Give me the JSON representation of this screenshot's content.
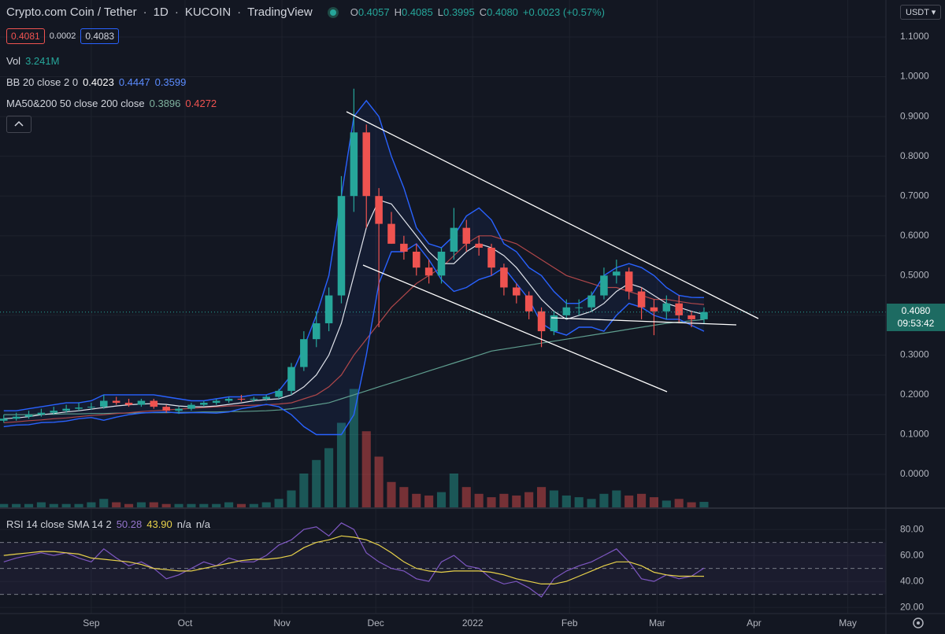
{
  "header": {
    "symbol": "Crypto.com Coin / Tether",
    "interval": "1D",
    "exchange": "KUCOIN",
    "source": "TradingView",
    "ohlc": [
      [
        "O",
        "0.4057"
      ],
      [
        "H",
        "0.4085"
      ],
      [
        "L",
        "0.3995"
      ],
      [
        "C",
        "0.4080"
      ]
    ],
    "change": "+0.0023 (+0.57%)",
    "sell": "0.4081",
    "spread": "0.0002",
    "buy": "0.4083",
    "currency": "USDT"
  },
  "legend": {
    "vol": {
      "name": "Vol",
      "value": "3.241M"
    },
    "bb": {
      "name": "BB 20 close 2 0",
      "values": [
        "0.4023",
        "0.4447",
        "0.3599"
      ]
    },
    "ma": {
      "name": "MA50&200 50 close 200 close",
      "values": [
        "0.3896",
        "0.4272"
      ]
    },
    "rsi": {
      "name": "RSI 14 close SMA 14 2",
      "values": [
        "50.28",
        "43.90",
        "n/a",
        "n/a"
      ]
    }
  },
  "chart_data": {
    "type": "candlestick",
    "x": [
      -28,
      -24,
      -20,
      -16,
      -12,
      -8,
      -4,
      0,
      4,
      8,
      12,
      16,
      20,
      24,
      28,
      32,
      36,
      40,
      44,
      48,
      52,
      56,
      60,
      64,
      68,
      72,
      76,
      80,
      84,
      88,
      92,
      96,
      100,
      104,
      108,
      112,
      116,
      120,
      124,
      128,
      132,
      136,
      140,
      144,
      148,
      152,
      156,
      160,
      164,
      168,
      172,
      176,
      180,
      184,
      188,
      192,
      196
    ],
    "xlim": [
      -29.2,
      254.2
    ],
    "xticks": [
      {
        "value": 0,
        "label": "Sep"
      },
      {
        "value": 30,
        "label": "Oct"
      },
      {
        "value": 61,
        "label": "Nov"
      },
      {
        "value": 91,
        "label": "Dec"
      },
      {
        "value": 122,
        "label": "2022"
      },
      {
        "value": 153,
        "label": "Feb"
      },
      {
        "value": 181,
        "label": "Mar"
      },
      {
        "value": 212,
        "label": "Apr"
      },
      {
        "value": 242,
        "label": "May"
      }
    ],
    "ylim": [
      -0.083,
      1.193
    ],
    "yticks": [
      {
        "value": 0,
        "label": "0.0000"
      },
      {
        "value": 0.1,
        "label": "0.1000"
      },
      {
        "value": 0.2,
        "label": "0.2000"
      },
      {
        "value": 0.3,
        "label": "0.3000"
      },
      {
        "value": 0.4,
        "label": "0.4000"
      },
      {
        "value": 0.5,
        "label": "0.5000"
      },
      {
        "value": 0.6,
        "label": "0.6000"
      },
      {
        "value": 0.7,
        "label": "0.7000"
      },
      {
        "value": 0.8,
        "label": "0.8000"
      },
      {
        "value": 0.9,
        "label": "0.9000"
      },
      {
        "value": 1,
        "label": "1.0000"
      },
      {
        "value": 1.1,
        "label": "1.1000"
      }
    ],
    "grid": true,
    "up_color": "#26a69a",
    "down_color": "#ef5350",
    "open": [
      0.135,
      0.14,
      0.145,
      0.15,
      0.155,
      0.16,
      0.165,
      0.168,
      0.17,
      0.185,
      0.18,
      0.175,
      0.185,
      0.17,
      0.16,
      0.165,
      0.175,
      0.18,
      0.185,
      0.19,
      0.188,
      0.19,
      0.195,
      0.21,
      0.27,
      0.34,
      0.38,
      0.45,
      0.7,
      0.86,
      0.7,
      0.63,
      0.58,
      0.56,
      0.52,
      0.5,
      0.56,
      0.62,
      0.58,
      0.57,
      0.52,
      0.47,
      0.45,
      0.41,
      0.36,
      0.4,
      0.42,
      0.42,
      0.45,
      0.5,
      0.51,
      0.46,
      0.42,
      0.41,
      0.43,
      0.4,
      0.39
    ],
    "high": [
      0.15,
      0.155,
      0.16,
      0.165,
      0.17,
      0.175,
      0.18,
      0.18,
      0.2,
      0.195,
      0.19,
      0.19,
      0.19,
      0.175,
      0.17,
      0.18,
      0.185,
      0.19,
      0.195,
      0.2,
      0.195,
      0.2,
      0.215,
      0.28,
      0.36,
      0.41,
      0.47,
      0.75,
      0.97,
      0.88,
      0.72,
      0.66,
      0.6,
      0.58,
      0.54,
      0.57,
      0.67,
      0.64,
      0.6,
      0.58,
      0.53,
      0.48,
      0.46,
      0.42,
      0.41,
      0.44,
      0.44,
      0.46,
      0.52,
      0.54,
      0.52,
      0.47,
      0.44,
      0.45,
      0.45,
      0.41,
      0.42
    ],
    "low": [
      0.13,
      0.135,
      0.14,
      0.145,
      0.15,
      0.155,
      0.16,
      0.162,
      0.165,
      0.175,
      0.17,
      0.17,
      0.165,
      0.155,
      0.152,
      0.16,
      0.17,
      0.175,
      0.18,
      0.183,
      0.182,
      0.185,
      0.19,
      0.2,
      0.26,
      0.32,
      0.36,
      0.43,
      0.66,
      0.62,
      0.37,
      0.58,
      0.54,
      0.5,
      0.48,
      0.48,
      0.54,
      0.56,
      0.55,
      0.5,
      0.45,
      0.43,
      0.39,
      0.32,
      0.35,
      0.39,
      0.4,
      0.41,
      0.44,
      0.48,
      0.44,
      0.39,
      0.35,
      0.39,
      0.38,
      0.37,
      0.38
    ],
    "close": [
      0.14,
      0.145,
      0.15,
      0.155,
      0.16,
      0.165,
      0.168,
      0.17,
      0.185,
      0.18,
      0.175,
      0.185,
      0.17,
      0.16,
      0.165,
      0.175,
      0.18,
      0.185,
      0.19,
      0.188,
      0.19,
      0.195,
      0.21,
      0.27,
      0.34,
      0.38,
      0.45,
      0.7,
      0.86,
      0.7,
      0.63,
      0.58,
      0.56,
      0.52,
      0.5,
      0.56,
      0.62,
      0.58,
      0.57,
      0.52,
      0.47,
      0.45,
      0.41,
      0.36,
      0.4,
      0.42,
      0.42,
      0.45,
      0.5,
      0.51,
      0.46,
      0.42,
      0.41,
      0.43,
      0.4,
      0.39,
      0.408
    ],
    "volume": {
      "ylim": [
        0,
        300
      ],
      "values": [
        2,
        2,
        2,
        3,
        2,
        2,
        2,
        3,
        5,
        3,
        2,
        3,
        3,
        2,
        2,
        2,
        2,
        2,
        3,
        2,
        2,
        3,
        5,
        10,
        20,
        28,
        35,
        50,
        70,
        45,
        30,
        15,
        12,
        8,
        7,
        9,
        20,
        12,
        8,
        6,
        8,
        7,
        9,
        12,
        10,
        7,
        6,
        5,
        8,
        10,
        7,
        8,
        6,
        4,
        5,
        3,
        3.241
      ]
    },
    "bb": {
      "basis_color": "#e0e3eb",
      "band_color": "#2962ff",
      "basis": [
        0.14,
        0.142,
        0.145,
        0.15,
        0.153,
        0.157,
        0.16,
        0.164,
        0.168,
        0.172,
        0.175,
        0.177,
        0.178,
        0.176,
        0.172,
        0.17,
        0.17,
        0.172,
        0.176,
        0.18,
        0.185,
        0.188,
        0.19,
        0.2,
        0.22,
        0.25,
        0.3,
        0.38,
        0.5,
        0.62,
        0.69,
        0.68,
        0.64,
        0.6,
        0.56,
        0.53,
        0.53,
        0.56,
        0.58,
        0.57,
        0.55,
        0.52,
        0.48,
        0.44,
        0.41,
        0.39,
        0.4,
        0.41,
        0.43,
        0.46,
        0.48,
        0.47,
        0.45,
        0.43,
        0.42,
        0.41,
        0.4023
      ],
      "upper": [
        0.16,
        0.16,
        0.165,
        0.17,
        0.175,
        0.18,
        0.18,
        0.185,
        0.2,
        0.2,
        0.2,
        0.2,
        0.2,
        0.195,
        0.19,
        0.185,
        0.185,
        0.19,
        0.195,
        0.195,
        0.2,
        0.2,
        0.21,
        0.25,
        0.32,
        0.4,
        0.5,
        0.7,
        0.9,
        0.94,
        0.9,
        0.8,
        0.72,
        0.62,
        0.58,
        0.57,
        0.6,
        0.65,
        0.67,
        0.64,
        0.58,
        0.56,
        0.52,
        0.5,
        0.46,
        0.43,
        0.43,
        0.45,
        0.5,
        0.52,
        0.53,
        0.52,
        0.5,
        0.47,
        0.45,
        0.445,
        0.4447
      ],
      "lower": [
        0.12,
        0.124,
        0.125,
        0.13,
        0.131,
        0.134,
        0.14,
        0.143,
        0.136,
        0.144,
        0.15,
        0.154,
        0.156,
        0.157,
        0.154,
        0.155,
        0.155,
        0.154,
        0.157,
        0.165,
        0.17,
        0.176,
        0.17,
        0.15,
        0.12,
        0.1,
        0.1,
        0.1,
        0.15,
        0.3,
        0.48,
        0.56,
        0.56,
        0.58,
        0.54,
        0.49,
        0.46,
        0.47,
        0.49,
        0.5,
        0.52,
        0.48,
        0.44,
        0.38,
        0.36,
        0.35,
        0.37,
        0.37,
        0.36,
        0.4,
        0.43,
        0.42,
        0.4,
        0.39,
        0.39,
        0.375,
        0.3599
      ]
    },
    "ma": {
      "series": [
        {
          "color": "#5f9e8f",
          "values": [
            0.15,
            0.15,
            0.15,
            0.151,
            0.151,
            0.152,
            0.152,
            0.153,
            0.153,
            0.154,
            0.154,
            0.155,
            0.155,
            0.155,
            0.156,
            0.156,
            0.157,
            0.157,
            0.158,
            0.158,
            0.159,
            0.16,
            0.162,
            0.165,
            0.17,
            0.175,
            0.18,
            0.19,
            0.2,
            0.21,
            0.22,
            0.23,
            0.24,
            0.25,
            0.26,
            0.27,
            0.28,
            0.29,
            0.3,
            0.31,
            0.315,
            0.32,
            0.325,
            0.33,
            0.335,
            0.34,
            0.345,
            0.35,
            0.355,
            0.36,
            0.365,
            0.37,
            0.375,
            0.38,
            0.383,
            0.386,
            0.3896
          ]
        },
        {
          "color": "#b0474a",
          "values": [
            0.13,
            0.132,
            0.135,
            0.137,
            0.14,
            0.142,
            0.145,
            0.148,
            0.15,
            0.153,
            0.155,
            0.158,
            0.16,
            0.162,
            0.164,
            0.166,
            0.168,
            0.17,
            0.172,
            0.173,
            0.174,
            0.175,
            0.177,
            0.18,
            0.19,
            0.2,
            0.22,
            0.25,
            0.3,
            0.34,
            0.38,
            0.42,
            0.45,
            0.48,
            0.5,
            0.52,
            0.55,
            0.58,
            0.6,
            0.6,
            0.59,
            0.58,
            0.56,
            0.54,
            0.52,
            0.5,
            0.49,
            0.48,
            0.47,
            0.47,
            0.46,
            0.45,
            0.44,
            0.44,
            0.435,
            0.43,
            0.4272
          ]
        }
      ]
    },
    "last_price": {
      "value": 0.408,
      "label": "0.4080",
      "countdown": "09:53:42"
    },
    "rsi": {
      "ylim": [
        15.2,
        95.2
      ],
      "yticks": [
        {
          "value": 20,
          "label": "20.00"
        },
        {
          "value": 40,
          "label": "40.00"
        },
        {
          "value": 60,
          "label": "60.00"
        },
        {
          "value": 80,
          "label": "80.00"
        }
      ],
      "bands": [
        30,
        50,
        70
      ],
      "color": "#7e57c2",
      "sma_color": "#e8d24a",
      "values": [
        55,
        58,
        60,
        62,
        60,
        62,
        58,
        55,
        65,
        58,
        52,
        55,
        50,
        42,
        45,
        50,
        55,
        52,
        58,
        55,
        55,
        60,
        68,
        72,
        80,
        82,
        75,
        85,
        80,
        62,
        55,
        50,
        48,
        42,
        40,
        55,
        60,
        52,
        50,
        42,
        38,
        40,
        35,
        28,
        42,
        48,
        52,
        55,
        60,
        65,
        55,
        42,
        40,
        45,
        42,
        44,
        50.28
      ],
      "sma": [
        60,
        61,
        62,
        63,
        63,
        62,
        61,
        58,
        57,
        56,
        55,
        53,
        50,
        49,
        48,
        48,
        50,
        52,
        54,
        56,
        57,
        57,
        58,
        60,
        66,
        70,
        72,
        75,
        74,
        72,
        68,
        62,
        55,
        50,
        48,
        47,
        48,
        48,
        48,
        47,
        45,
        42,
        40,
        38,
        38,
        40,
        44,
        48,
        52,
        55,
        55,
        52,
        47,
        45,
        44,
        44,
        43.9
      ]
    }
  }
}
